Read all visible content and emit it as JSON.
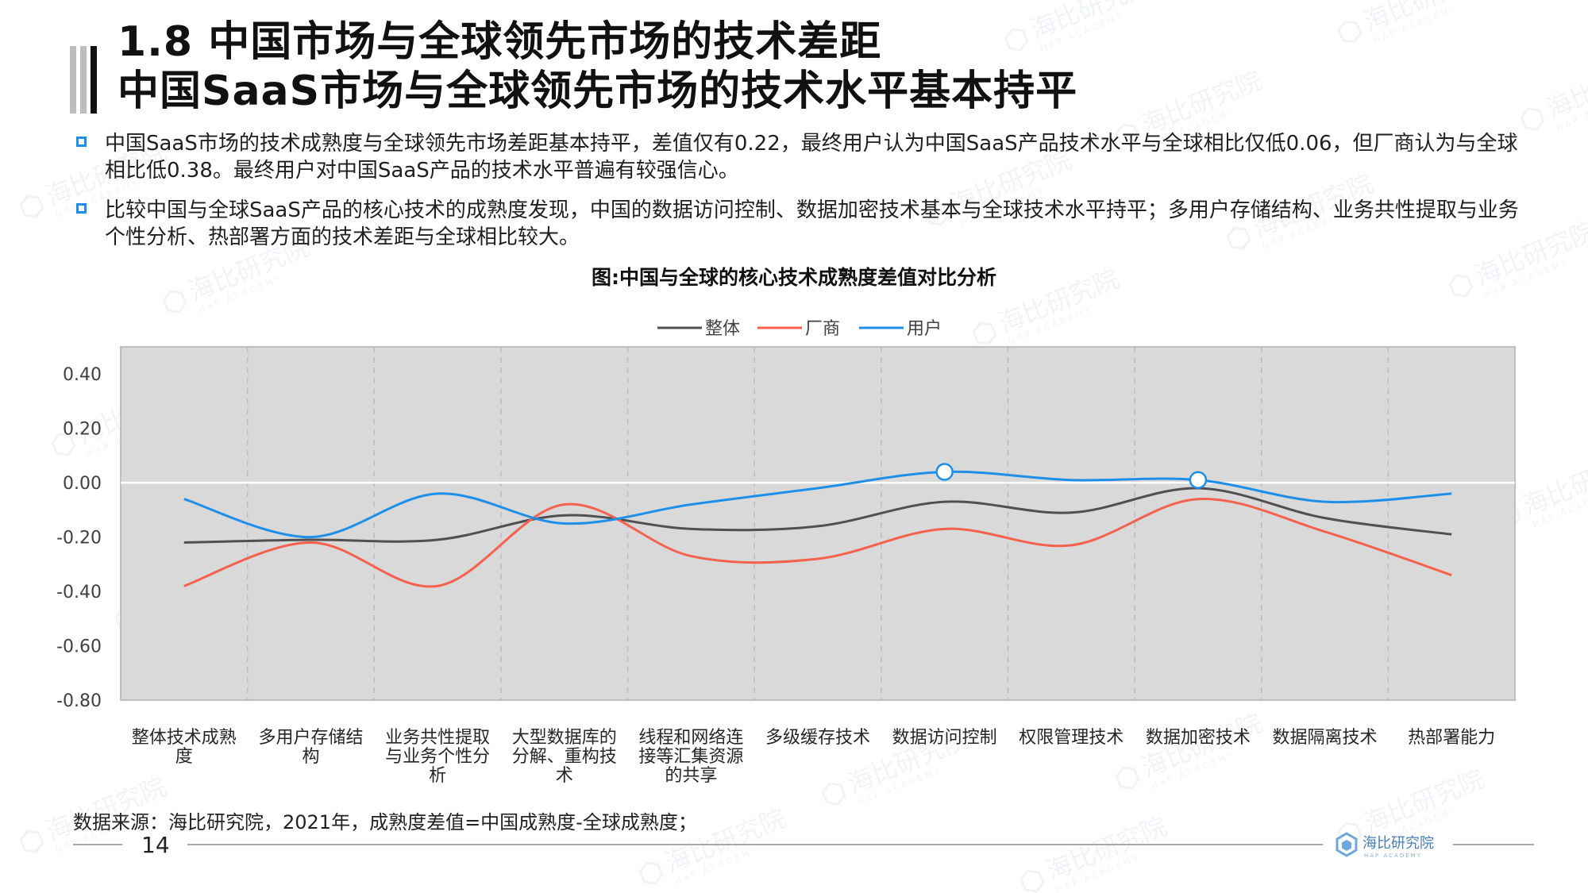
{
  "title": {
    "line1": "1.8 中国市场与全球领先市场的技术差距",
    "line2": "中国SaaS市场与全球领先市场的技术水平基本持平"
  },
  "bullets": [
    "中国SaaS市场的技术成熟度与全球领先市场差距基本持平，差值仅有0.22，最终用户认为中国SaaS产品技术水平与全球相比仅低0.06，但厂商认为与全球相比低0.38。最终用户对中国SaaS产品的技术水平普遍有较强信心。",
    "比较中国与全球SaaS产品的核心技术的成熟度发现，中国的数据访问控制、数据加密技术基本与全球技术水平持平；多用户存储结构、业务共性提取与业务个性分析、热部署方面的技术差距与全球相比较大。"
  ],
  "chart_title": "图:中国与全球的核心技术成熟度差值对比分析",
  "source": "数据来源：海比研究院，2021年，成熟度差值=中国成熟度-全球成熟度；",
  "page_number": "14",
  "logo": {
    "cn": "海比研究院",
    "en": "HAP ACADEMY"
  },
  "watermark": {
    "cn": "海比研究院",
    "en": "HAP ACADEMY"
  },
  "colors": {
    "accent": "#1e8fe8",
    "plot_bg": "#d9d9d9"
  },
  "chart_data": {
    "type": "line",
    "categories": [
      "整体技术成熟度",
      "多用户存储结构",
      "业务共性提取与业务个性分析",
      "大型数据库的分解、重构技术",
      "线程和网络连接等汇集资源的共享",
      "多级缓存技术",
      "数据访问控制",
      "权限管理技术",
      "数据加密技术",
      "数据隔离技术",
      "热部署能力"
    ],
    "category_label_lines": [
      [
        "整体技术成熟",
        "度"
      ],
      [
        "多用户存储结",
        "构"
      ],
      [
        "业务共性提取",
        "与业务个性分",
        "析"
      ],
      [
        "大型数据库的",
        "分解、重构技",
        "术"
      ],
      [
        "线程和网络连",
        "接等汇集资源",
        "的共享"
      ],
      [
        "多级缓存技术"
      ],
      [
        "数据访问控制"
      ],
      [
        "权限管理技术"
      ],
      [
        "数据加密技术"
      ],
      [
        "数据隔离技术"
      ],
      [
        "热部署能力"
      ]
    ],
    "series": [
      {
        "name": "整体",
        "color": "#505050",
        "values": [
          -0.22,
          -0.21,
          -0.21,
          -0.12,
          -0.17,
          -0.16,
          -0.07,
          -0.11,
          -0.02,
          -0.13,
          -0.19
        ]
      },
      {
        "name": "厂商",
        "color": "#f4614d",
        "values": [
          -0.38,
          -0.22,
          -0.38,
          -0.08,
          -0.27,
          -0.28,
          -0.17,
          -0.23,
          -0.06,
          -0.18,
          -0.34
        ]
      },
      {
        "name": "用户",
        "color": "#1e8fe8",
        "values": [
          -0.06,
          -0.2,
          -0.04,
          -0.15,
          -0.08,
          -0.02,
          0.04,
          0.01,
          0.01,
          -0.07,
          -0.04
        ]
      }
    ],
    "highlighted_points": [
      {
        "series": "用户",
        "category": "数据访问控制",
        "value": 0.04
      },
      {
        "series": "用户",
        "category": "数据加密技术",
        "value": 0.01
      }
    ],
    "yticks": [
      0.4,
      0.2,
      0.0,
      -0.2,
      -0.4,
      -0.6,
      -0.8
    ],
    "ytick_labels": [
      "0.40",
      "0.20",
      "0.00",
      "-0.20",
      "-0.40",
      "-0.60",
      "-0.80"
    ],
    "ylim": [
      -0.8,
      0.5
    ],
    "legend_position": "top-center",
    "grid": "vertical dashed"
  }
}
